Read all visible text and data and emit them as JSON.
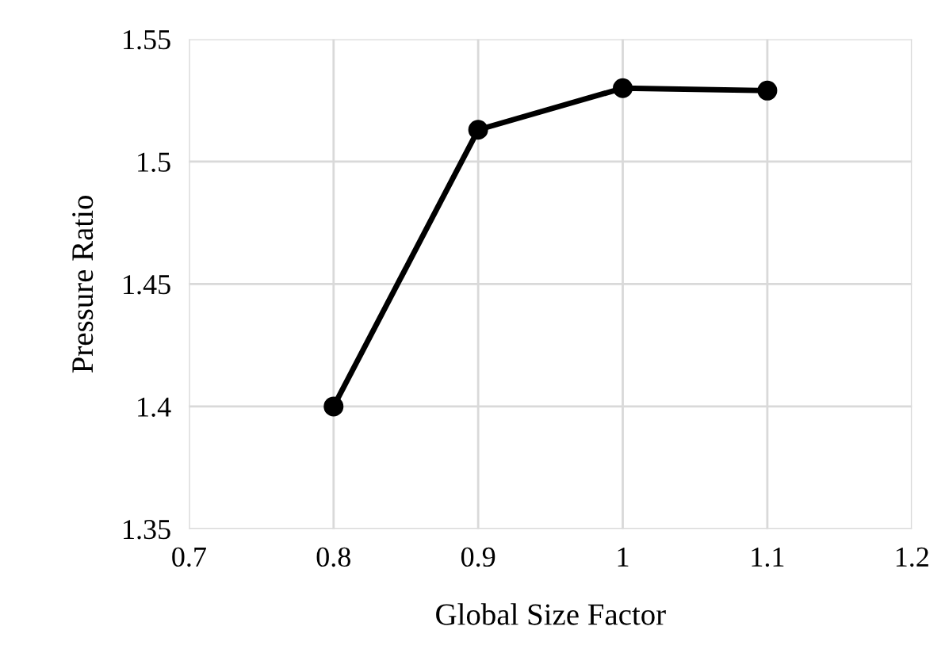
{
  "chart_data": {
    "type": "line",
    "xlabel": "Global Size Factor",
    "ylabel": "Pressure Ratio",
    "x": [
      0.8,
      0.9,
      1.0,
      1.1
    ],
    "series": [
      {
        "color": "#000000",
        "values": [
          1.4,
          1.513,
          1.53,
          1.529
        ]
      }
    ],
    "xlim": [
      0.7,
      1.2
    ],
    "xticks": [
      0.7,
      0.8,
      0.9,
      1,
      1.1,
      1.2
    ],
    "ylim": [
      1.35,
      1.55
    ],
    "yticks": [
      1.35,
      1.4,
      1.45,
      1.5,
      1.55
    ],
    "grid": true,
    "marker": "circle",
    "line_style": "solid",
    "legend": false
  }
}
